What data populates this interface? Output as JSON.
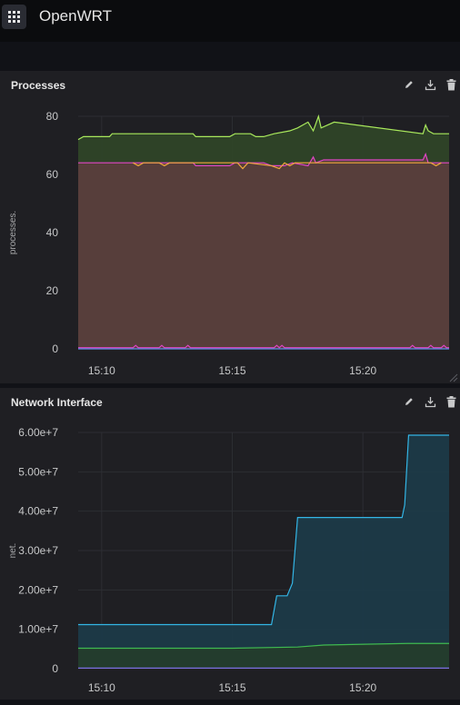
{
  "app": {
    "title": "OpenWRT"
  },
  "panels": [
    {
      "title": "Processes",
      "chart_data": {
        "type": "area",
        "ylabel": "processes.",
        "ylim": [
          0,
          80
        ],
        "yticks": [
          "0",
          "20",
          "40",
          "60",
          "80"
        ],
        "xticks": [
          "15:10",
          "15:15",
          "15:20"
        ],
        "xtick_minutes": [
          10,
          15,
          20
        ],
        "xlim_minutes": [
          9.1,
          23.3
        ],
        "series": [
          {
            "color": "#a9e95c",
            "fill": "#2f4428",
            "points": [
              [
                9.1,
                72
              ],
              [
                9.3,
                73
              ],
              [
                10.3,
                73
              ],
              [
                10.4,
                74
              ],
              [
                13.5,
                74
              ],
              [
                13.6,
                73
              ],
              [
                14.9,
                73
              ],
              [
                15.1,
                74
              ],
              [
                15.7,
                74
              ],
              [
                15.9,
                73
              ],
              [
                16.2,
                73
              ],
              [
                16.6,
                74
              ],
              [
                17.2,
                75
              ],
              [
                17.5,
                76
              ],
              [
                17.9,
                78
              ],
              [
                18.1,
                75
              ],
              [
                18.3,
                80
              ],
              [
                18.4,
                76
              ],
              [
                18.9,
                78
              ],
              [
                22.3,
                74
              ],
              [
                22.4,
                77
              ],
              [
                22.5,
                75
              ],
              [
                22.7,
                74
              ],
              [
                23.3,
                74
              ]
            ]
          },
          {
            "color": "#e045c6",
            "fill": "#5a3e3c",
            "points": [
              [
                9.1,
                64
              ],
              [
                13.5,
                64
              ],
              [
                13.6,
                63
              ],
              [
                14.9,
                63
              ],
              [
                15.1,
                64
              ],
              [
                16.2,
                64
              ],
              [
                16.5,
                63
              ],
              [
                17.0,
                63
              ],
              [
                17.3,
                64
              ],
              [
                17.9,
                63
              ],
              [
                18.1,
                66
              ],
              [
                18.2,
                64
              ],
              [
                18.5,
                65
              ],
              [
                22.3,
                65
              ],
              [
                22.4,
                67
              ],
              [
                22.5,
                64
              ],
              [
                23.3,
                64
              ]
            ]
          },
          {
            "color": "#f2a93b",
            "fill": "none",
            "points": [
              [
                11.2,
                64
              ],
              [
                11.4,
                63
              ],
              [
                11.6,
                64
              ],
              [
                12.2,
                64
              ],
              [
                12.4,
                63
              ],
              [
                12.6,
                64
              ],
              [
                15.2,
                64
              ],
              [
                15.4,
                62
              ],
              [
                15.6,
                64
              ],
              [
                16.5,
                63
              ],
              [
                16.8,
                62
              ],
              [
                17.0,
                64
              ],
              [
                17.2,
                63
              ],
              [
                17.4,
                64
              ],
              [
                22.6,
                64
              ],
              [
                22.8,
                63
              ],
              [
                23.0,
                64
              ]
            ]
          },
          {
            "color": "#e045c6",
            "fill": "none",
            "points": [
              [
                9.1,
                0.4
              ],
              [
                11.2,
                0.4
              ],
              [
                11.3,
                1.2
              ],
              [
                11.4,
                0.4
              ],
              [
                12.2,
                0.4
              ],
              [
                12.3,
                1.2
              ],
              [
                12.4,
                0.4
              ],
              [
                13.2,
                0.4
              ],
              [
                13.3,
                1.2
              ],
              [
                13.4,
                0.4
              ],
              [
                16.6,
                0.4
              ],
              [
                16.7,
                1.2
              ],
              [
                16.8,
                0.4
              ],
              [
                16.9,
                1.2
              ],
              [
                17.0,
                0.4
              ],
              [
                21.8,
                0.4
              ],
              [
                21.9,
                1.2
              ],
              [
                22.0,
                0.4
              ],
              [
                22.5,
                0.4
              ],
              [
                22.6,
                1.2
              ],
              [
                22.7,
                0.4
              ],
              [
                23.0,
                0.4
              ],
              [
                23.1,
                1.2
              ],
              [
                23.2,
                0.4
              ],
              [
                23.3,
                0.4
              ]
            ]
          },
          {
            "color": "#5c8ee6",
            "fill": "none",
            "points": [
              [
                9.1,
                0
              ],
              [
                23.3,
                0
              ]
            ]
          }
        ]
      }
    },
    {
      "title": "Network Interface",
      "chart_data": {
        "type": "area",
        "ylabel": "net.",
        "ylim": [
          0,
          60000000
        ],
        "yticks": [
          "0",
          "1.00e+7",
          "2.00e+7",
          "3.00e+7",
          "4.00e+7",
          "5.00e+7",
          "6.00e+7"
        ],
        "xticks": [
          "15:10",
          "15:15",
          "15:20"
        ],
        "xtick_minutes": [
          10,
          15,
          20
        ],
        "xlim_minutes": [
          9.1,
          23.3
        ],
        "series": [
          {
            "color": "#33b5e5",
            "fill": "#1c3a48",
            "points": [
              [
                9.1,
                11200000
              ],
              [
                16.5,
                11200000
              ],
              [
                16.7,
                18500000
              ],
              [
                17.1,
                18500000
              ],
              [
                17.3,
                21700000
              ],
              [
                17.5,
                38400000
              ],
              [
                21.5,
                38400000
              ],
              [
                21.6,
                41600000
              ],
              [
                21.75,
                59300000
              ],
              [
                23.3,
                59300000
              ]
            ]
          },
          {
            "color": "#3fb950",
            "fill": "#243c2c",
            "points": [
              [
                9.1,
                5200000
              ],
              [
                15.0,
                5200000
              ],
              [
                17.5,
                5500000
              ],
              [
                18.5,
                6000000
              ],
              [
                21.7,
                6400000
              ],
              [
                23.3,
                6400000
              ]
            ]
          },
          {
            "color": "#7a6fe0",
            "fill": "none",
            "points": [
              [
                9.1,
                150000
              ],
              [
                23.3,
                150000
              ]
            ]
          }
        ]
      }
    }
  ]
}
